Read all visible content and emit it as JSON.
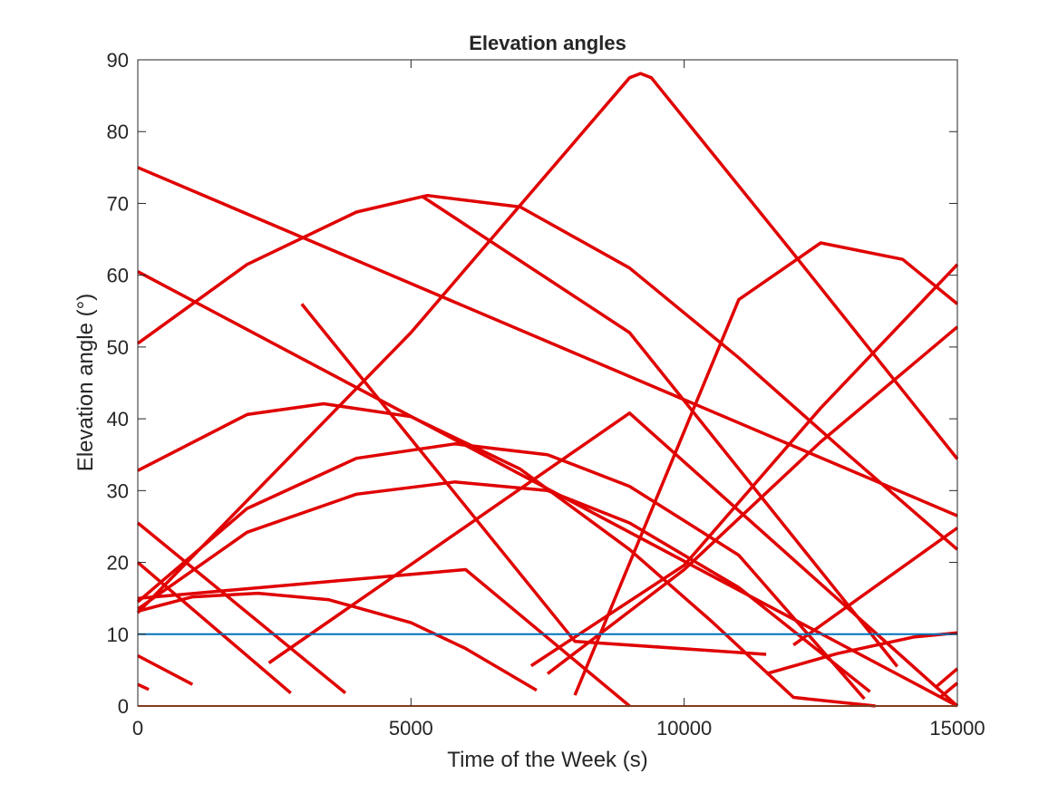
{
  "chart_data": {
    "type": "line",
    "title": "Elevation angles",
    "xlabel": "Time of the Week (s)",
    "ylabel": "Elevation angle (°)",
    "xlim": [
      0,
      15000
    ],
    "ylim": [
      0,
      90
    ],
    "xticks": [
      0,
      5000,
      10000,
      15000
    ],
    "yticks": [
      0,
      10,
      20,
      30,
      40,
      50,
      60,
      70,
      80,
      90
    ],
    "xtick_labels": [
      "0",
      "5000",
      "10000",
      "15000"
    ],
    "ytick_labels": [
      "0",
      "10",
      "20",
      "30",
      "40",
      "50",
      "60",
      "70",
      "80",
      "90"
    ],
    "grid": false,
    "box": true,
    "colors": {
      "satellite": "#e00000",
      "mask": "#0072bd",
      "zero": "#d95319",
      "axis": "#262626"
    },
    "series": [
      {
        "kind": "satellite",
        "x": [
          0,
          15000
        ],
        "y": [
          75,
          26.5
        ]
      },
      {
        "kind": "satellite",
        "x": [
          0,
          15000
        ],
        "y": [
          60.5,
          0
        ]
      },
      {
        "kind": "satellite",
        "x": [
          0,
          2000,
          4000,
          5300,
          7000,
          9000,
          11000,
          13000,
          15000
        ],
        "y": [
          50.5,
          61.5,
          68.8,
          71.1,
          69.5,
          61,
          48.5,
          35,
          21.8
        ]
      },
      {
        "kind": "satellite",
        "x": [
          0,
          2000,
          3400,
          5000,
          7000,
          9000,
          10500,
          12000,
          13500
        ],
        "y": [
          32.8,
          40.6,
          42.1,
          40.3,
          33,
          21.8,
          11.8,
          1.2,
          0
        ]
      },
      {
        "kind": "satellite",
        "x": [
          0,
          2000,
          4000,
          5800,
          7500,
          9000,
          11000,
          13300
        ],
        "y": [
          14.5,
          27.5,
          34.5,
          36.5,
          35,
          30.6,
          21,
          1
        ]
      },
      {
        "kind": "satellite",
        "x": [
          0,
          2000,
          4000,
          5800,
          7500,
          9000,
          11000,
          13400
        ],
        "y": [
          13.5,
          24.2,
          29.5,
          31.2,
          30,
          25.5,
          16.5,
          2
        ]
      },
      {
        "kind": "satellite",
        "x": [
          0,
          1000,
          2200,
          3500,
          5000,
          6000,
          7300
        ],
        "y": [
          13.2,
          15.2,
          15.7,
          14.8,
          11.6,
          8,
          2.2
        ]
      },
      {
        "kind": "satellite",
        "x": [
          0,
          5000,
          9000,
          9200,
          9400,
          12000,
          15000
        ],
        "y": [
          13,
          52,
          87.5,
          88.1,
          87.5,
          63,
          34.4
        ]
      },
      {
        "kind": "satellite",
        "x": [
          0,
          2800
        ],
        "y": [
          20,
          1.8
        ]
      },
      {
        "kind": "satellite",
        "x": [
          0,
          3800
        ],
        "y": [
          25.5,
          1.8
        ]
      },
      {
        "kind": "satellite",
        "x": [
          0,
          1000
        ],
        "y": [
          7,
          3
        ]
      },
      {
        "kind": "satellite",
        "x": [
          0,
          200
        ],
        "y": [
          3,
          2.3
        ]
      },
      {
        "kind": "satellite",
        "x": [
          0,
          6000,
          9000
        ],
        "y": [
          15,
          19,
          0
        ]
      },
      {
        "kind": "satellite",
        "x": [
          2400,
          9000,
          15000
        ],
        "y": [
          6,
          40.8,
          0
        ]
      },
      {
        "kind": "satellite",
        "x": [
          7200,
          10000,
          12500,
          15000
        ],
        "y": [
          5.6,
          19.6,
          41.5,
          61.5
        ]
      },
      {
        "kind": "satellite",
        "x": [
          7500,
          10000,
          12500,
          15000
        ],
        "y": [
          4.5,
          19,
          36.8,
          52.8
        ]
      },
      {
        "kind": "satellite",
        "x": [
          3000,
          8000,
          11500
        ],
        "y": [
          56,
          9,
          7.2
        ]
      },
      {
        "kind": "satellite",
        "x": [
          8000,
          11000,
          12500,
          14000,
          15000
        ],
        "y": [
          1.5,
          56.6,
          64.5,
          62.2,
          56
        ]
      },
      {
        "kind": "satellite",
        "x": [
          5200,
          9000,
          13900
        ],
        "y": [
          71,
          52,
          5.5
        ]
      },
      {
        "kind": "satellite",
        "x": [
          11500,
          12800,
          14200,
          15000
        ],
        "y": [
          4.5,
          7.3,
          9.6,
          10.2
        ]
      },
      {
        "kind": "satellite",
        "x": [
          12000,
          15000
        ],
        "y": [
          8.5,
          24.8
        ]
      },
      {
        "kind": "satellite",
        "x": [
          14600,
          15000
        ],
        "y": [
          2.6,
          5.2
        ]
      },
      {
        "kind": "satellite",
        "x": [
          14700,
          15000
        ],
        "y": [
          1.3,
          3.2
        ]
      },
      {
        "kind": "mask",
        "x": [
          0,
          15000
        ],
        "y": [
          10,
          10
        ]
      },
      {
        "kind": "zero",
        "x": [
          0,
          15000
        ],
        "y": [
          0,
          0
        ]
      }
    ]
  }
}
